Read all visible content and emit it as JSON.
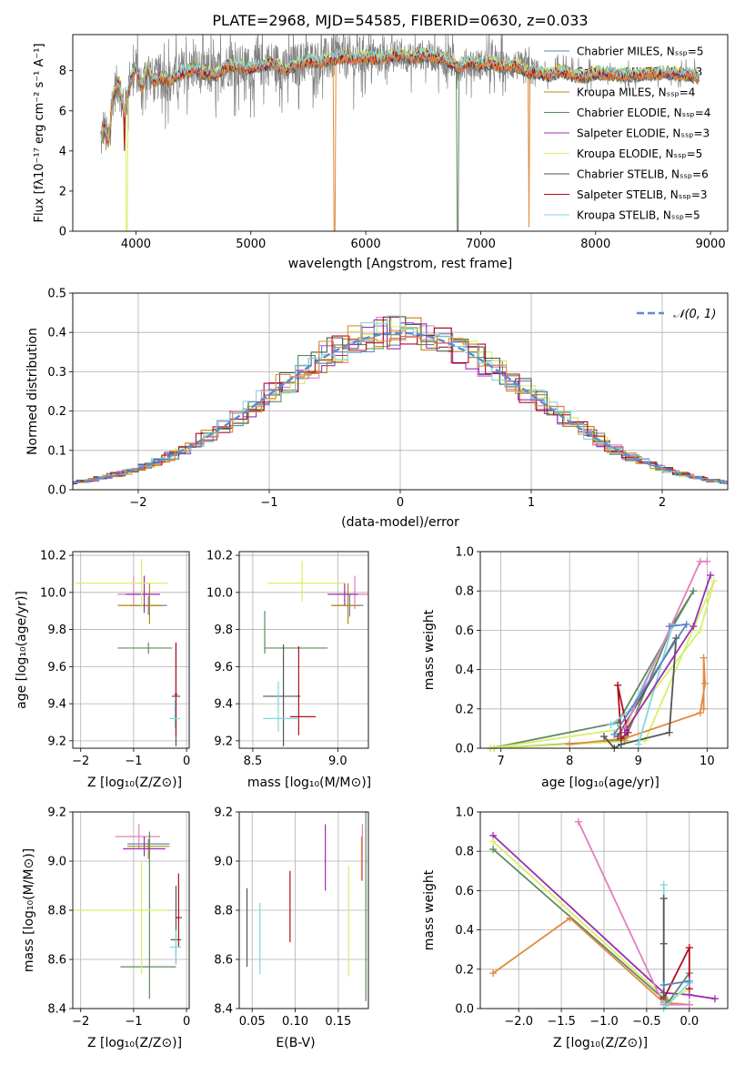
{
  "colors": {
    "chabrier_miles": "#5b84c4",
    "salpeter_miles": "#e07fbf",
    "kroupa_miles": "#b8860b",
    "chabrier_elodie": "#5e8a5e",
    "salpeter_elodie": "#9a2faf",
    "kroupa_elodie": "#d7ef6a",
    "chabrier_stelib": "#555555",
    "salpeter_stelib": "#b00e1a",
    "kroupa_stelib": "#7fd8df",
    "orange": "#e08a3c",
    "gray_spectrum": "#808080"
  },
  "chart_data": [
    {
      "id": "spectrum",
      "type": "line",
      "title": "PLATE=2968, MJD=54585, FIBERID=0630, z=0.033",
      "xlabel": "wavelength [Angstrom, rest frame]",
      "ylabel": "Flux [fλ10⁻¹⁷ erg cm⁻² s⁻¹ A⁻¹]",
      "xlim": [
        3450,
        9150
      ],
      "ylim": [
        0,
        9.8
      ],
      "xticks": [
        "4000",
        "5000",
        "6000",
        "7000",
        "8000",
        "9000"
      ],
      "yticks": [
        "0",
        "2",
        "4",
        "6",
        "8"
      ],
      "legend_position": "top-right",
      "legend": [
        "Chabrier MILES, Nₛₛₚ=5",
        "Salpeter MILES, Nₛₛₚ=3",
        "Kroupa MILES, Nₛₛₚ=4",
        "Chabrier ELODIE, Nₛₛₚ=4",
        "Salpeter ELODIE, Nₛₛₚ=3",
        "Kroupa ELODIE, Nₛₛₚ=5",
        "Chabrier STELIB, Nₛₛₚ=6",
        "Salpeter STELIB, Nₛₛₚ=3",
        "Kroupa STELIB, Nₛₛₚ=5"
      ],
      "series": [
        {
          "x": [
            3700,
            3720,
            3760,
            3800,
            3850,
            3900,
            3950,
            4000,
            4050,
            4100,
            4150,
            4200,
            4300,
            4400,
            4500,
            4600,
            4700,
            4800,
            4900,
            5000,
            5100,
            5200,
            5300,
            5400,
            5500,
            5600,
            5700,
            5800,
            5900,
            6000,
            6100,
            6200,
            6300,
            6400,
            6500,
            6600,
            6700,
            6800,
            6900,
            7000,
            7100,
            7200,
            7300,
            7400,
            7500,
            7600,
            7700,
            7800,
            7900,
            8000,
            8200,
            8400,
            8600,
            8800,
            8900
          ],
          "y": [
            4.6,
            5.2,
            4.3,
            6.8,
            7.4,
            5.8,
            7.7,
            8.1,
            7.1,
            8.2,
            7.4,
            7.7,
            7.5,
            7.9,
            8.1,
            7.9,
            7.8,
            8.3,
            8.2,
            8.1,
            8.3,
            8.4,
            8.0,
            8.3,
            8.5,
            8.4,
            8.6,
            8.7,
            8.6,
            8.7,
            8.6,
            8.7,
            8.8,
            8.6,
            8.8,
            8.7,
            8.5,
            8.2,
            8.4,
            8.3,
            8.4,
            8.2,
            8.3,
            8.0,
            7.9,
            7.8,
            8.0,
            7.8,
            7.7,
            7.9,
            7.8,
            7.8,
            7.9,
            7.8,
            7.7
          ]
        }
      ]
    },
    {
      "id": "residuals",
      "type": "line",
      "xlabel": "(data-model)/error",
      "ylabel": "Normed distribution",
      "xlim": [
        -2.5,
        2.5
      ],
      "ylim": [
        0,
        0.5
      ],
      "xticks": [
        "−2",
        "−1",
        "0",
        "1",
        "2"
      ],
      "yticks": [
        "0.0",
        "0.1",
        "0.2",
        "0.3",
        "0.4",
        "0.5"
      ],
      "grid": true,
      "legend_position": "top-right",
      "legend": [
        "𝒩(0, 1)"
      ],
      "gaussian": {
        "mu": 0,
        "sigma": 1
      }
    },
    {
      "id": "age_vs_Z",
      "type": "scatter",
      "xlabel": "Z [log₁₀(Z/Z⊙)]",
      "ylabel": "age  [log₁₀(age/yr)]",
      "xlim": [
        -2.15,
        0.05
      ],
      "ylim": [
        9.16,
        10.22
      ],
      "xticks": [
        "−2",
        "−1",
        "0"
      ],
      "yticks": [
        "9.2",
        "9.4",
        "9.6",
        "9.8",
        "10.0",
        "10.2"
      ],
      "grid": true,
      "points": [
        {
          "c": "chabrier_miles",
          "x": -0.72,
          "xe": [
            0.35,
            0.35
          ],
          "y": 9.93,
          "ye": [
            0.05,
            0.05
          ]
        },
        {
          "c": "salpeter_miles",
          "x": -1.0,
          "xe": [
            0.3,
            0.3
          ],
          "y": 9.99,
          "ye": [
            0.06,
            0.1
          ]
        },
        {
          "c": "kroupa_miles",
          "x": -0.7,
          "xe": [
            0.6,
            0.25
          ],
          "y": 9.93,
          "ye": [
            0.1,
            0.12
          ]
        },
        {
          "c": "chabrier_elodie",
          "x": -0.72,
          "xe": [
            0.58,
            0.45
          ],
          "y": 9.7,
          "ye": [
            0.03,
            0.03
          ]
        },
        {
          "c": "salpeter_elodie",
          "x": -0.8,
          "xe": [
            0.35,
            0.3
          ],
          "y": 9.99,
          "ye": [
            0.1,
            0.1
          ]
        },
        {
          "c": "kroupa_elodie",
          "x": -0.85,
          "xe": [
            1.25,
            0.5
          ],
          "y": 10.05,
          "ye": [
            0.13,
            0.13
          ]
        },
        {
          "c": "chabrier_stelib",
          "x": -0.2,
          "xe": [
            0.08,
            0.08
          ],
          "y": 9.44,
          "ye": [
            0.27,
            0.28
          ]
        },
        {
          "c": "salpeter_stelib",
          "x": -0.2,
          "xe": [
            0.03,
            0.03
          ],
          "y": 9.45,
          "ye": [
            0.22,
            0.28
          ]
        },
        {
          "c": "kroupa_stelib",
          "x": -0.22,
          "xe": [
            0.1,
            0.1
          ],
          "y": 9.32,
          "ye": [
            0.05,
            0.1
          ]
        }
      ]
    },
    {
      "id": "age_vs_mass",
      "type": "scatter",
      "xlabel": "mass [log₁₀(M/M⊙)]",
      "xlim": [
        8.42,
        9.18
      ],
      "ylim": [
        9.16,
        10.22
      ],
      "xticks": [
        "8.5",
        "9.0"
      ],
      "yticks": [
        "9.2",
        "9.4",
        "9.6",
        "9.8",
        "10.0",
        "10.2"
      ],
      "grid": true,
      "points": [
        {
          "c": "chabrier_miles",
          "x": 9.07,
          "xe": [
            0.1,
            0.08
          ],
          "y": 9.93,
          "ye": [
            0.06,
            0.06
          ]
        },
        {
          "c": "salpeter_miles",
          "x": 9.1,
          "xe": [
            0.1,
            0.08
          ],
          "y": 9.99,
          "ye": [
            0.08,
            0.1
          ]
        },
        {
          "c": "kroupa_miles",
          "x": 9.06,
          "xe": [
            0.1,
            0.07
          ],
          "y": 9.93,
          "ye": [
            0.1,
            0.12
          ]
        },
        {
          "c": "chabrier_elodie",
          "x": 8.57,
          "xe": [
            0.0,
            0.37
          ],
          "y": 9.7,
          "ye": [
            0.03,
            0.2
          ]
        },
        {
          "c": "salpeter_elodie",
          "x": 9.04,
          "xe": [
            0.1,
            0.08
          ],
          "y": 9.99,
          "ye": [
            0.06,
            0.06
          ]
        },
        {
          "c": "kroupa_elodie",
          "x": 8.79,
          "xe": [
            0.2,
            0.25
          ],
          "y": 10.05,
          "ye": [
            0.1,
            0.12
          ]
        },
        {
          "c": "chabrier_stelib",
          "x": 8.68,
          "xe": [
            0.12,
            0.1
          ],
          "y": 9.44,
          "ye": [
            0.27,
            0.28
          ]
        },
        {
          "c": "salpeter_stelib",
          "x": 8.77,
          "xe": [
            0.05,
            0.1
          ],
          "y": 9.33,
          "ye": [
            0.1,
            0.38
          ]
        },
        {
          "c": "kroupa_stelib",
          "x": 8.65,
          "xe": [
            0.09,
            0.12
          ],
          "y": 9.32,
          "ye": [
            0.07,
            0.2
          ]
        }
      ]
    },
    {
      "id": "massweight_vs_age",
      "type": "line",
      "xlabel": "age  [log₁₀(age/yr)]",
      "ylabel": "mass weight",
      "xlim": [
        6.7,
        10.3
      ],
      "ylim": [
        0,
        1.0
      ],
      "xticks": [
        "7",
        "8",
        "9",
        "10"
      ],
      "yticks": [
        "0.0",
        "0.2",
        "0.4",
        "0.6",
        "0.8",
        "1.0"
      ],
      "grid": true,
      "series": [
        {
          "c": "chabrier_elodie",
          "x": [
            6.85,
            8.7,
            9.8,
            9.5,
            8.8,
            6.9
          ],
          "y": [
            0.0,
            0.13,
            0.8,
            0.63,
            0.04,
            0.0
          ]
        },
        {
          "c": "kroupa_elodie",
          "x": [
            6.85,
            8.8,
            9.9,
            10.1,
            9.1,
            6.9
          ],
          "y": [
            0.0,
            0.1,
            0.6,
            0.85,
            0.04,
            0.0
          ]
        },
        {
          "c": "orange",
          "x": [
            8.0,
            8.8,
            9.9,
            9.97,
            9.95,
            9.95
          ],
          "y": [
            0.02,
            0.05,
            0.18,
            0.33,
            0.46,
            0.2
          ]
        },
        {
          "c": "chabrier_stelib",
          "x": [
            8.5,
            8.65,
            8.75,
            9.45,
            9.55,
            8.7
          ],
          "y": [
            0.06,
            0.0,
            0.02,
            0.08,
            0.56,
            0.06
          ]
        },
        {
          "c": "salpeter_stelib",
          "x": [
            8.7,
            8.75,
            8.85,
            8.7
          ],
          "y": [
            0.32,
            0.05,
            0.08,
            0.32
          ]
        },
        {
          "c": "kroupa_stelib",
          "x": [
            8.6,
            8.9,
            9.5,
            9.0
          ],
          "y": [
            0.12,
            0.2,
            0.63,
            0.02
          ]
        },
        {
          "c": "salpeter_miles",
          "x": [
            8.8,
            9.9,
            10.0
          ],
          "y": [
            0.1,
            0.95,
            0.95
          ]
        },
        {
          "c": "salpeter_elodie",
          "x": [
            8.8,
            9.8,
            10.05
          ],
          "y": [
            0.08,
            0.62,
            0.88
          ]
        },
        {
          "c": "chabrier_miles",
          "x": [
            8.65,
            9.7,
            9.45
          ],
          "y": [
            0.07,
            0.63,
            0.62
          ]
        }
      ]
    },
    {
      "id": "mass_vs_Z",
      "type": "scatter",
      "xlabel": "Z [log₁₀(Z/Z⊙)]",
      "ylabel": "mass [log₁₀(M/M⊙)]",
      "xlim": [
        -2.15,
        0.05
      ],
      "ylim": [
        8.4,
        9.2
      ],
      "xticks": [
        "−2",
        "−1",
        "0"
      ],
      "yticks": [
        "8.4",
        "8.6",
        "8.8",
        "9.0",
        "9.2"
      ],
      "grid": true,
      "points": [
        {
          "c": "chabrier_miles",
          "x": -0.72,
          "xe": [
            0.4,
            0.4
          ],
          "y": 9.07,
          "ye": [
            0.02,
            0.02
          ]
        },
        {
          "c": "salpeter_miles",
          "x": -0.9,
          "xe": [
            0.45,
            0.4
          ],
          "y": 9.1,
          "ye": [
            0.05,
            0.05
          ]
        },
        {
          "c": "kroupa_miles",
          "x": -0.72,
          "xe": [
            0.4,
            0.4
          ],
          "y": 9.06,
          "ye": [
            0.05,
            0.02
          ]
        },
        {
          "c": "chabrier_elodie",
          "x": -0.7,
          "xe": [
            0.55,
            0.5
          ],
          "y": 8.57,
          "ye": [
            0.13,
            0.55
          ]
        },
        {
          "c": "salpeter_elodie",
          "x": -0.8,
          "xe": [
            0.4,
            0.4
          ],
          "y": 9.05,
          "ye": [
            0.03,
            0.05
          ]
        },
        {
          "c": "kroupa_elodie",
          "x": -0.85,
          "xe": [
            1.3,
            0.5
          ],
          "y": 8.8,
          "ye": [
            0.26,
            0.2
          ]
        },
        {
          "c": "chabrier_stelib",
          "x": -0.2,
          "xe": [
            0.1,
            0.1
          ],
          "y": 8.68,
          "ye": [
            0.1,
            0.22
          ]
        },
        {
          "c": "salpeter_stelib",
          "x": -0.15,
          "xe": [
            0.06,
            0.06
          ],
          "y": 8.77,
          "ye": [
            0.12,
            0.18
          ]
        },
        {
          "c": "kroupa_stelib",
          "x": -0.2,
          "xe": [
            0.12,
            0.1
          ],
          "y": 8.65,
          "ye": [
            0.07,
            0.07
          ]
        }
      ]
    },
    {
      "id": "mass_vs_ebv",
      "type": "scatter",
      "xlabel": "E(B-V)",
      "xlim": [
        0.035,
        0.185
      ],
      "ylim": [
        8.4,
        9.2
      ],
      "xticks": [
        "0.05",
        "0.10",
        "0.15"
      ],
      "yticks": [
        "8.4",
        "8.6",
        "8.8",
        "9.0",
        "9.2"
      ],
      "grid": true,
      "points": [
        {
          "c": "chabrier_stelib",
          "x": 0.044,
          "y": 8.73,
          "ye": [
            0.16,
            0.16
          ]
        },
        {
          "c": "kroupa_stelib",
          "x": 0.059,
          "y": 8.69,
          "ye": [
            0.15,
            0.14
          ]
        },
        {
          "c": "salpeter_stelib",
          "x": 0.094,
          "y": 8.82,
          "ye": [
            0.15,
            0.14
          ]
        },
        {
          "c": "salpeter_elodie",
          "x": 0.135,
          "y": 9.02,
          "ye": [
            0.14,
            0.13
          ]
        },
        {
          "c": "kroupa_elodie",
          "x": 0.162,
          "y": 8.76,
          "ye": [
            0.23,
            0.22
          ]
        },
        {
          "c": "salpeter_miles",
          "x": 0.178,
          "y": 9.03,
          "ye": [
            0.11,
            0.12
          ]
        },
        {
          "c": "orange",
          "x": 0.177,
          "y": 9.02,
          "ye": [
            0.1,
            0.08
          ]
        },
        {
          "c": "chabrier_elodie",
          "x": 0.182,
          "y": 8.8,
          "ye": [
            0.37,
            0.4
          ]
        }
      ]
    },
    {
      "id": "massweight_vs_Z",
      "type": "line",
      "xlabel": "Z [log₁₀(Z/Z⊙)]",
      "ylabel": "mass weight",
      "xlim": [
        -2.45,
        0.45
      ],
      "ylim": [
        0,
        1.0
      ],
      "xticks": [
        "−2.0",
        "−1.5",
        "−1.0",
        "−0.5",
        "0.0"
      ],
      "yticks": [
        "0.0",
        "0.2",
        "0.4",
        "0.6",
        "0.8",
        "1.0"
      ],
      "grid": true,
      "series": [
        {
          "c": "salpeter_elodie",
          "x": [
            -2.3,
            -0.3,
            0.0,
            0.3
          ],
          "y": [
            0.88,
            0.08,
            0.07,
            0.05
          ]
        },
        {
          "c": "kroupa_elodie",
          "x": [
            -2.3,
            -0.25,
            0.0
          ],
          "y": [
            0.85,
            0.04,
            0.1
          ]
        },
        {
          "c": "chabrier_elodie",
          "x": [
            -2.3,
            -0.25,
            0.0
          ],
          "y": [
            0.81,
            0.03,
            0.18
          ]
        },
        {
          "c": "orange",
          "x": [
            -2.3,
            -1.4,
            -0.3,
            0.0
          ],
          "y": [
            0.18,
            0.46,
            0.03,
            0.02
          ]
        },
        {
          "c": "salpeter_miles",
          "x": [
            -1.3,
            -0.3,
            0.0
          ],
          "y": [
            0.95,
            0.02,
            0.02
          ]
        },
        {
          "c": "salpeter_stelib",
          "x": [
            -0.3,
            0.0,
            0.0
          ],
          "y": [
            0.05,
            0.31,
            0.1
          ]
        },
        {
          "c": "kroupa_stelib",
          "x": [
            -0.3,
            -0.3,
            -0.3,
            0.0
          ],
          "y": [
            0.63,
            0.33,
            0.0,
            0.13
          ]
        },
        {
          "c": "chabrier_stelib",
          "x": [
            -0.3,
            -0.3,
            -0.3
          ],
          "y": [
            0.56,
            0.33,
            0.06
          ]
        },
        {
          "c": "chabrier_miles",
          "x": [
            -0.3,
            0.0
          ],
          "y": [
            0.12,
            0.14
          ]
        }
      ]
    }
  ]
}
